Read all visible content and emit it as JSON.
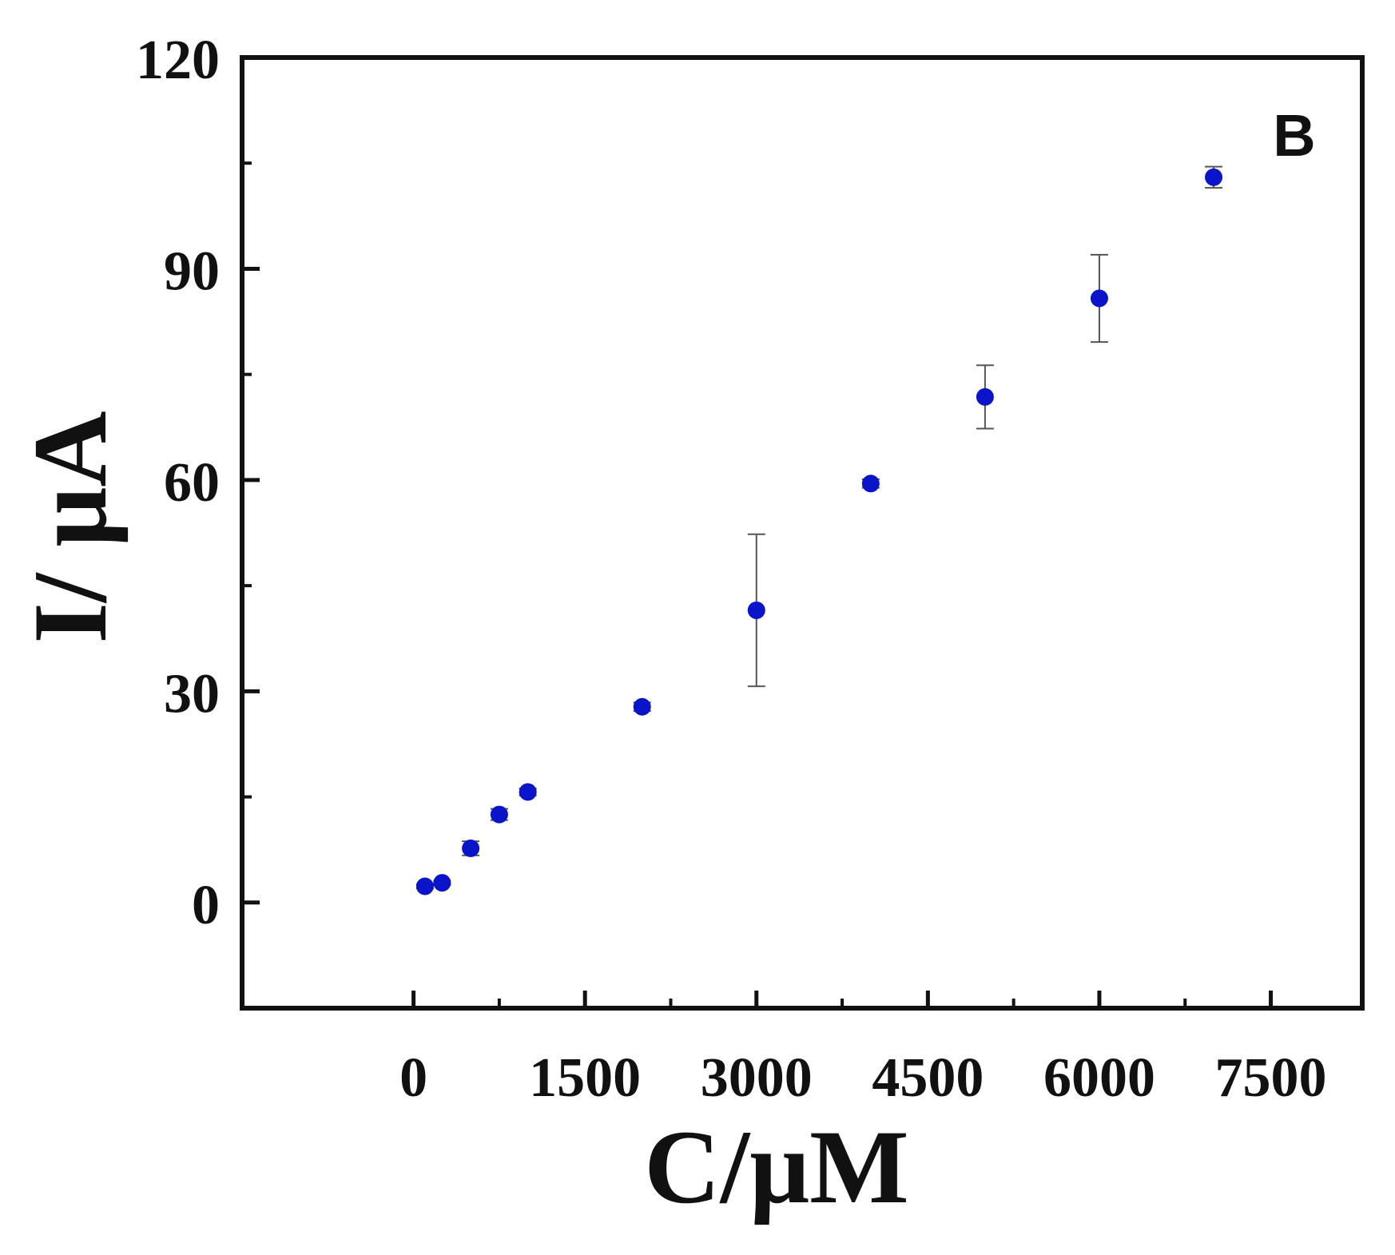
{
  "chart_data": {
    "type": "scatter",
    "panel_label": "B",
    "xlabel": "C/μM",
    "ylabel": "I/ μA",
    "xlim": [
      -1500,
      8300
    ],
    "ylim": [
      -15,
      120
    ],
    "x_ticks": [
      0,
      1500,
      3000,
      4500,
      6000,
      7500
    ],
    "x_tick_labels": [
      "0",
      "1500",
      "3000",
      "4500",
      "6000",
      "7500"
    ],
    "x_minor_ticks": [
      750,
      2250,
      3750,
      5250,
      6750
    ],
    "y_ticks": [
      0,
      30,
      60,
      90,
      120
    ],
    "y_tick_labels": [
      "0",
      "30",
      "60",
      "90",
      "120"
    ],
    "y_minor_ticks": [
      15,
      45,
      75,
      105
    ],
    "grid": false,
    "marker_color": "#0a14c8",
    "errorbar_color": "#555555",
    "series": [
      {
        "x": [
          100,
          250,
          500,
          750,
          1000,
          2000,
          3000,
          4000,
          5000,
          6000,
          7000
        ],
        "y": [
          2.3,
          2.8,
          7.7,
          12.5,
          15.7,
          27.8,
          41.5,
          59.5,
          71.8,
          85.8,
          103.0
        ],
        "err": [
          0.3,
          0.3,
          1.0,
          0.8,
          0.5,
          0.6,
          10.8,
          0.6,
          4.5,
          6.2,
          1.5
        ]
      }
    ]
  }
}
